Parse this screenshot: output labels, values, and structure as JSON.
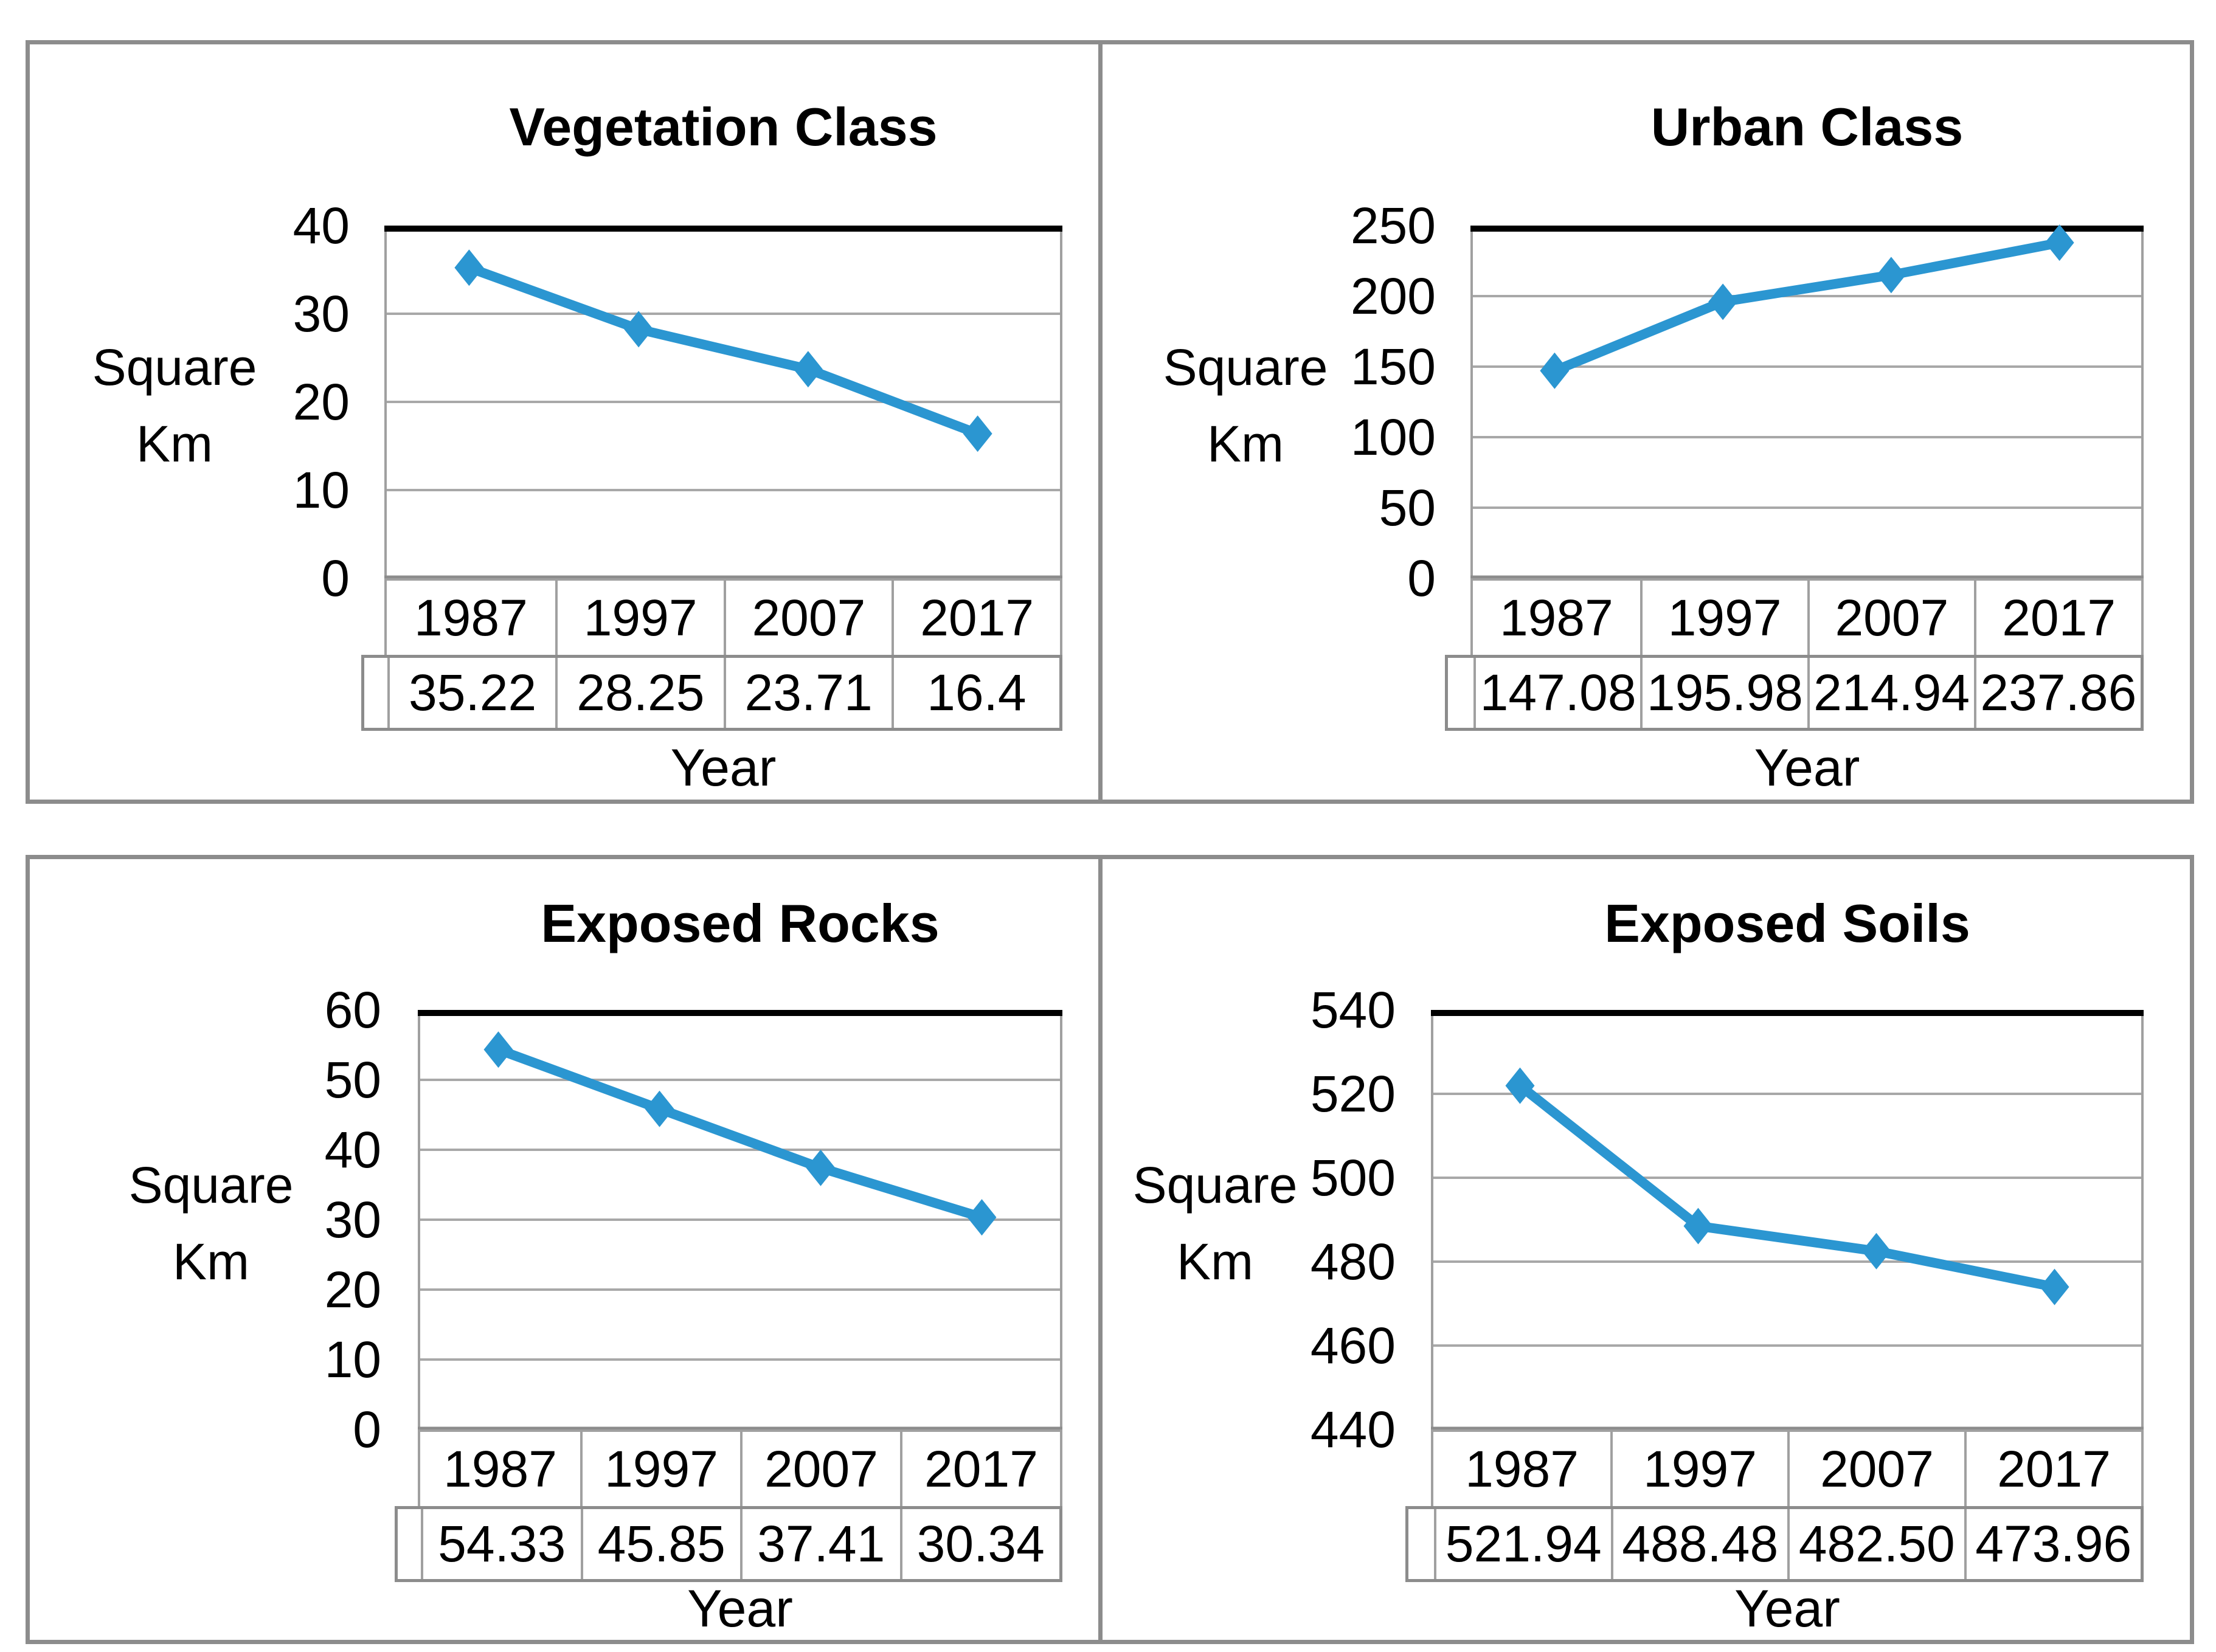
{
  "page": {
    "background": "#ffffff",
    "border_color": "#8c8c8c"
  },
  "chart_data": [
    {
      "type": "line",
      "title": "Vegetation Class",
      "ylabel": "Square Km",
      "ylabel_lines": [
        "Square",
        "Km"
      ],
      "xlabel": "Year",
      "categories": [
        "1987",
        "1997",
        "2007",
        "2017"
      ],
      "values": [
        35.22,
        28.25,
        23.71,
        16.4
      ],
      "value_labels": [
        "35.22",
        "28.25",
        "23.71",
        "16.4"
      ],
      "y_ticks": [
        "40",
        "30",
        "20",
        "10",
        "0"
      ],
      "ylim": [
        0,
        40
      ],
      "line_color": "#2B96D1",
      "marker": "diamond",
      "grid": true,
      "legend": "none"
    },
    {
      "type": "line",
      "title": "Urban Class",
      "ylabel": "Square Km",
      "ylabel_lines": [
        "Square",
        "Km"
      ],
      "xlabel": "Year",
      "categories": [
        "1987",
        "1997",
        "2007",
        "2017"
      ],
      "values": [
        147.08,
        195.98,
        214.94,
        237.86
      ],
      "value_labels": [
        "147.08",
        "195.98",
        "214.94",
        "237.86"
      ],
      "y_ticks": [
        "250",
        "200",
        "150",
        "100",
        "50",
        "0"
      ],
      "ylim": [
        0,
        250
      ],
      "line_color": "#2B96D1",
      "marker": "diamond",
      "grid": true,
      "legend": "none"
    },
    {
      "type": "line",
      "title": "Exposed Rocks",
      "ylabel": "Square Km",
      "ylabel_lines": [
        "Square",
        "Km"
      ],
      "xlabel": "Year",
      "categories": [
        "1987",
        "1997",
        "2007",
        "2017"
      ],
      "values": [
        54.33,
        45.85,
        37.41,
        30.34
      ],
      "value_labels": [
        "54.33",
        "45.85",
        "37.41",
        "30.34"
      ],
      "y_ticks": [
        "60",
        "50",
        "40",
        "30",
        "20",
        "10",
        "0"
      ],
      "ylim": [
        0,
        60
      ],
      "line_color": "#2B96D1",
      "marker": "diamond",
      "grid": true,
      "legend": "none"
    },
    {
      "type": "line",
      "title": "Exposed Soils",
      "ylabel": "Square Km",
      "ylabel_lines": [
        "Square",
        "Km"
      ],
      "xlabel": "Year",
      "categories": [
        "1987",
        "1997",
        "2007",
        "2017"
      ],
      "values": [
        521.94,
        488.48,
        482.5,
        473.96
      ],
      "value_labels": [
        "521.94",
        "488.48",
        "482.50",
        "473.96"
      ],
      "y_ticks": [
        "540",
        "520",
        "500",
        "480",
        "460",
        "440"
      ],
      "ylim": [
        440,
        540
      ],
      "line_color": "#2B96D1",
      "marker": "diamond",
      "grid": true,
      "legend": "none"
    }
  ]
}
